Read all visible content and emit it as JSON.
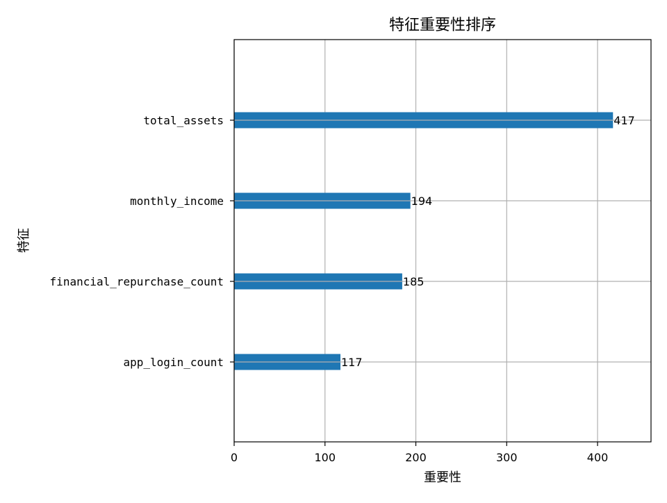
{
  "chart_data": {
    "type": "bar",
    "orientation": "horizontal",
    "title": "特征重要性排序",
    "xlabel": "重要性",
    "ylabel": "特征",
    "categories": [
      "total_assets",
      "monthly_income",
      "financial_repurchase_count",
      "app_login_count"
    ],
    "values": [
      417,
      194,
      185,
      117
    ],
    "data_labels": [
      "417",
      "194",
      "185",
      "117"
    ],
    "x_ticks": [
      0,
      100,
      200,
      300,
      400
    ],
    "x_tick_labels": [
      "0",
      "100",
      "200",
      "300",
      "400"
    ],
    "xlim": [
      0,
      458.85
    ],
    "grid": true,
    "bar_color": "#1f77b4",
    "grid_color": "#b0b0b0"
  }
}
